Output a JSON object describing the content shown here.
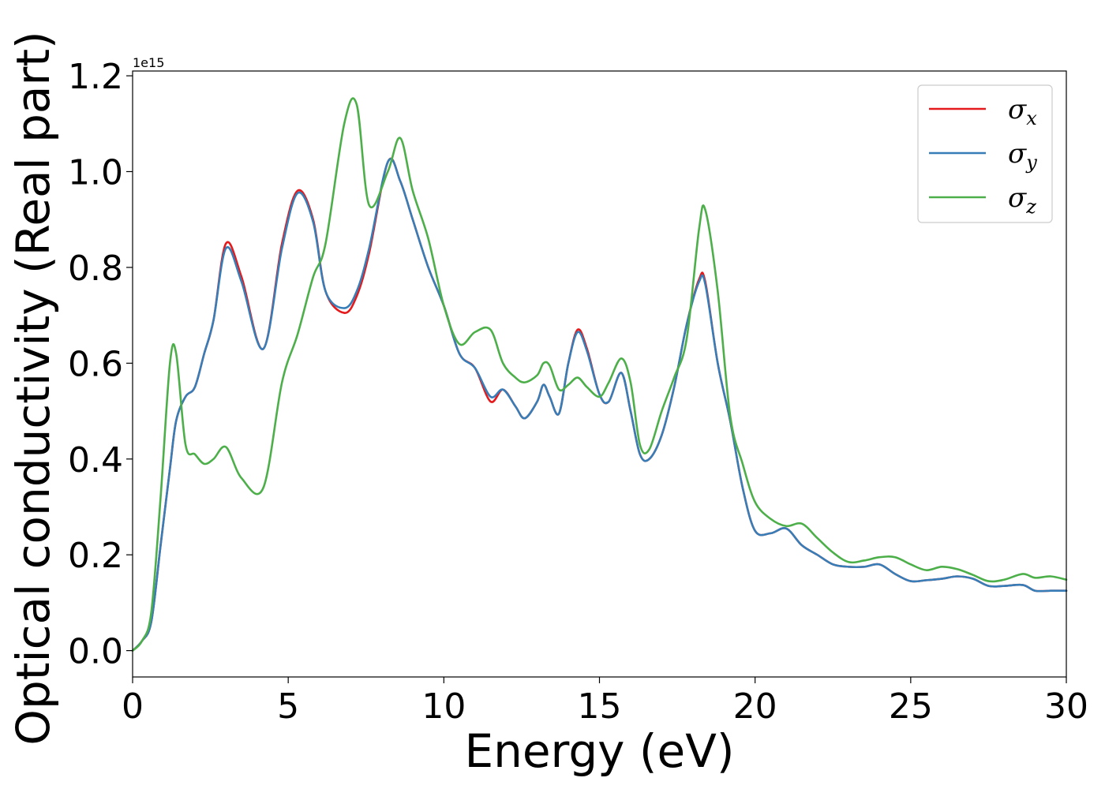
{
  "chart_data": {
    "type": "line",
    "title": "",
    "xlabel": "Energy (eV)",
    "ylabel": "Optical conductivity (Real part)",
    "y_offset_label": "1e15",
    "xlim": [
      0,
      30
    ],
    "ylim": [
      -0.055,
      1.21
    ],
    "x_ticks": [
      0,
      5,
      10,
      15,
      20,
      25,
      30
    ],
    "y_ticks": [
      0.0,
      0.2,
      0.4,
      0.6,
      0.8,
      1.0,
      1.2
    ],
    "x_tick_labels": [
      "0",
      "5",
      "10",
      "15",
      "20",
      "25",
      "30"
    ],
    "y_tick_labels": [
      "0.0",
      "0.2",
      "0.4",
      "0.6",
      "0.8",
      "1.0",
      "1.2"
    ],
    "grid": false,
    "legend_position": "top-right",
    "x": [
      0,
      0.3,
      0.6,
      0.9,
      1.2,
      1.4,
      1.7,
      2.0,
      2.3,
      2.6,
      3.0,
      3.5,
      4.2,
      4.8,
      5.3,
      5.8,
      6.2,
      6.8,
      7.2,
      7.6,
      8.2,
      8.6,
      9.0,
      9.5,
      10.0,
      10.5,
      11.0,
      11.5,
      11.9,
      12.3,
      12.6,
      13.0,
      13.2,
      13.4,
      13.7,
      14.0,
      14.3,
      14.6,
      15.0,
      15.3,
      15.7,
      16.0,
      16.3,
      16.6,
      17.0,
      17.4,
      17.8,
      18.2,
      18.4,
      18.8,
      19.2,
      19.6,
      20.0,
      20.5,
      21.0,
      21.5,
      22.0,
      22.5,
      23.0,
      23.5,
      24.0,
      24.5,
      25.0,
      25.5,
      26.0,
      26.5,
      27.0,
      27.5,
      28.0,
      28.6,
      29.0,
      29.5,
      30.0
    ],
    "series": [
      {
        "name": "σx",
        "label_base": "σ",
        "label_sub": "x",
        "color": "#e41a1c",
        "values": [
          0.0,
          0.02,
          0.06,
          0.22,
          0.38,
          0.48,
          0.53,
          0.55,
          0.62,
          0.69,
          0.85,
          0.78,
          0.63,
          0.85,
          0.96,
          0.9,
          0.75,
          0.705,
          0.74,
          0.83,
          1.02,
          0.98,
          0.9,
          0.8,
          0.72,
          0.62,
          0.59,
          0.52,
          0.545,
          0.51,
          0.485,
          0.52,
          0.555,
          0.53,
          0.495,
          0.6,
          0.67,
          0.63,
          0.535,
          0.52,
          0.58,
          0.5,
          0.41,
          0.4,
          0.45,
          0.55,
          0.68,
          0.775,
          0.77,
          0.6,
          0.48,
          0.34,
          0.25,
          0.245,
          0.255,
          0.22,
          0.2,
          0.18,
          0.175,
          0.175,
          0.18,
          0.16,
          0.145,
          0.147,
          0.15,
          0.155,
          0.15,
          0.135,
          0.135,
          0.137,
          0.125,
          0.125,
          0.125
        ]
      },
      {
        "name": "σy",
        "label_base": "σ",
        "label_sub": "y",
        "color": "#377eb8",
        "values": [
          0.0,
          0.02,
          0.06,
          0.22,
          0.38,
          0.48,
          0.53,
          0.55,
          0.62,
          0.69,
          0.84,
          0.77,
          0.63,
          0.84,
          0.955,
          0.895,
          0.75,
          0.715,
          0.75,
          0.84,
          1.02,
          0.98,
          0.9,
          0.8,
          0.72,
          0.62,
          0.59,
          0.53,
          0.545,
          0.51,
          0.485,
          0.52,
          0.555,
          0.53,
          0.495,
          0.6,
          0.665,
          0.625,
          0.535,
          0.52,
          0.58,
          0.5,
          0.41,
          0.4,
          0.45,
          0.55,
          0.68,
          0.77,
          0.765,
          0.6,
          0.48,
          0.34,
          0.25,
          0.245,
          0.255,
          0.22,
          0.2,
          0.18,
          0.175,
          0.175,
          0.18,
          0.16,
          0.145,
          0.147,
          0.15,
          0.155,
          0.15,
          0.135,
          0.135,
          0.137,
          0.125,
          0.125,
          0.125
        ]
      },
      {
        "name": "σz",
        "label_base": "σ",
        "label_sub": "z",
        "color": "#4daf4a",
        "values": [
          0.0,
          0.02,
          0.08,
          0.32,
          0.6,
          0.62,
          0.43,
          0.41,
          0.39,
          0.4,
          0.425,
          0.36,
          0.34,
          0.56,
          0.66,
          0.78,
          0.85,
          1.1,
          1.14,
          0.93,
          1.0,
          1.07,
          0.96,
          0.86,
          0.72,
          0.64,
          0.665,
          0.67,
          0.6,
          0.57,
          0.56,
          0.575,
          0.6,
          0.595,
          0.545,
          0.555,
          0.57,
          0.55,
          0.53,
          0.56,
          0.61,
          0.56,
          0.43,
          0.42,
          0.5,
          0.57,
          0.65,
          0.88,
          0.92,
          0.75,
          0.49,
          0.39,
          0.31,
          0.275,
          0.26,
          0.265,
          0.235,
          0.205,
          0.185,
          0.188,
          0.195,
          0.195,
          0.18,
          0.168,
          0.175,
          0.17,
          0.158,
          0.145,
          0.148,
          0.16,
          0.152,
          0.155,
          0.148
        ]
      }
    ]
  }
}
